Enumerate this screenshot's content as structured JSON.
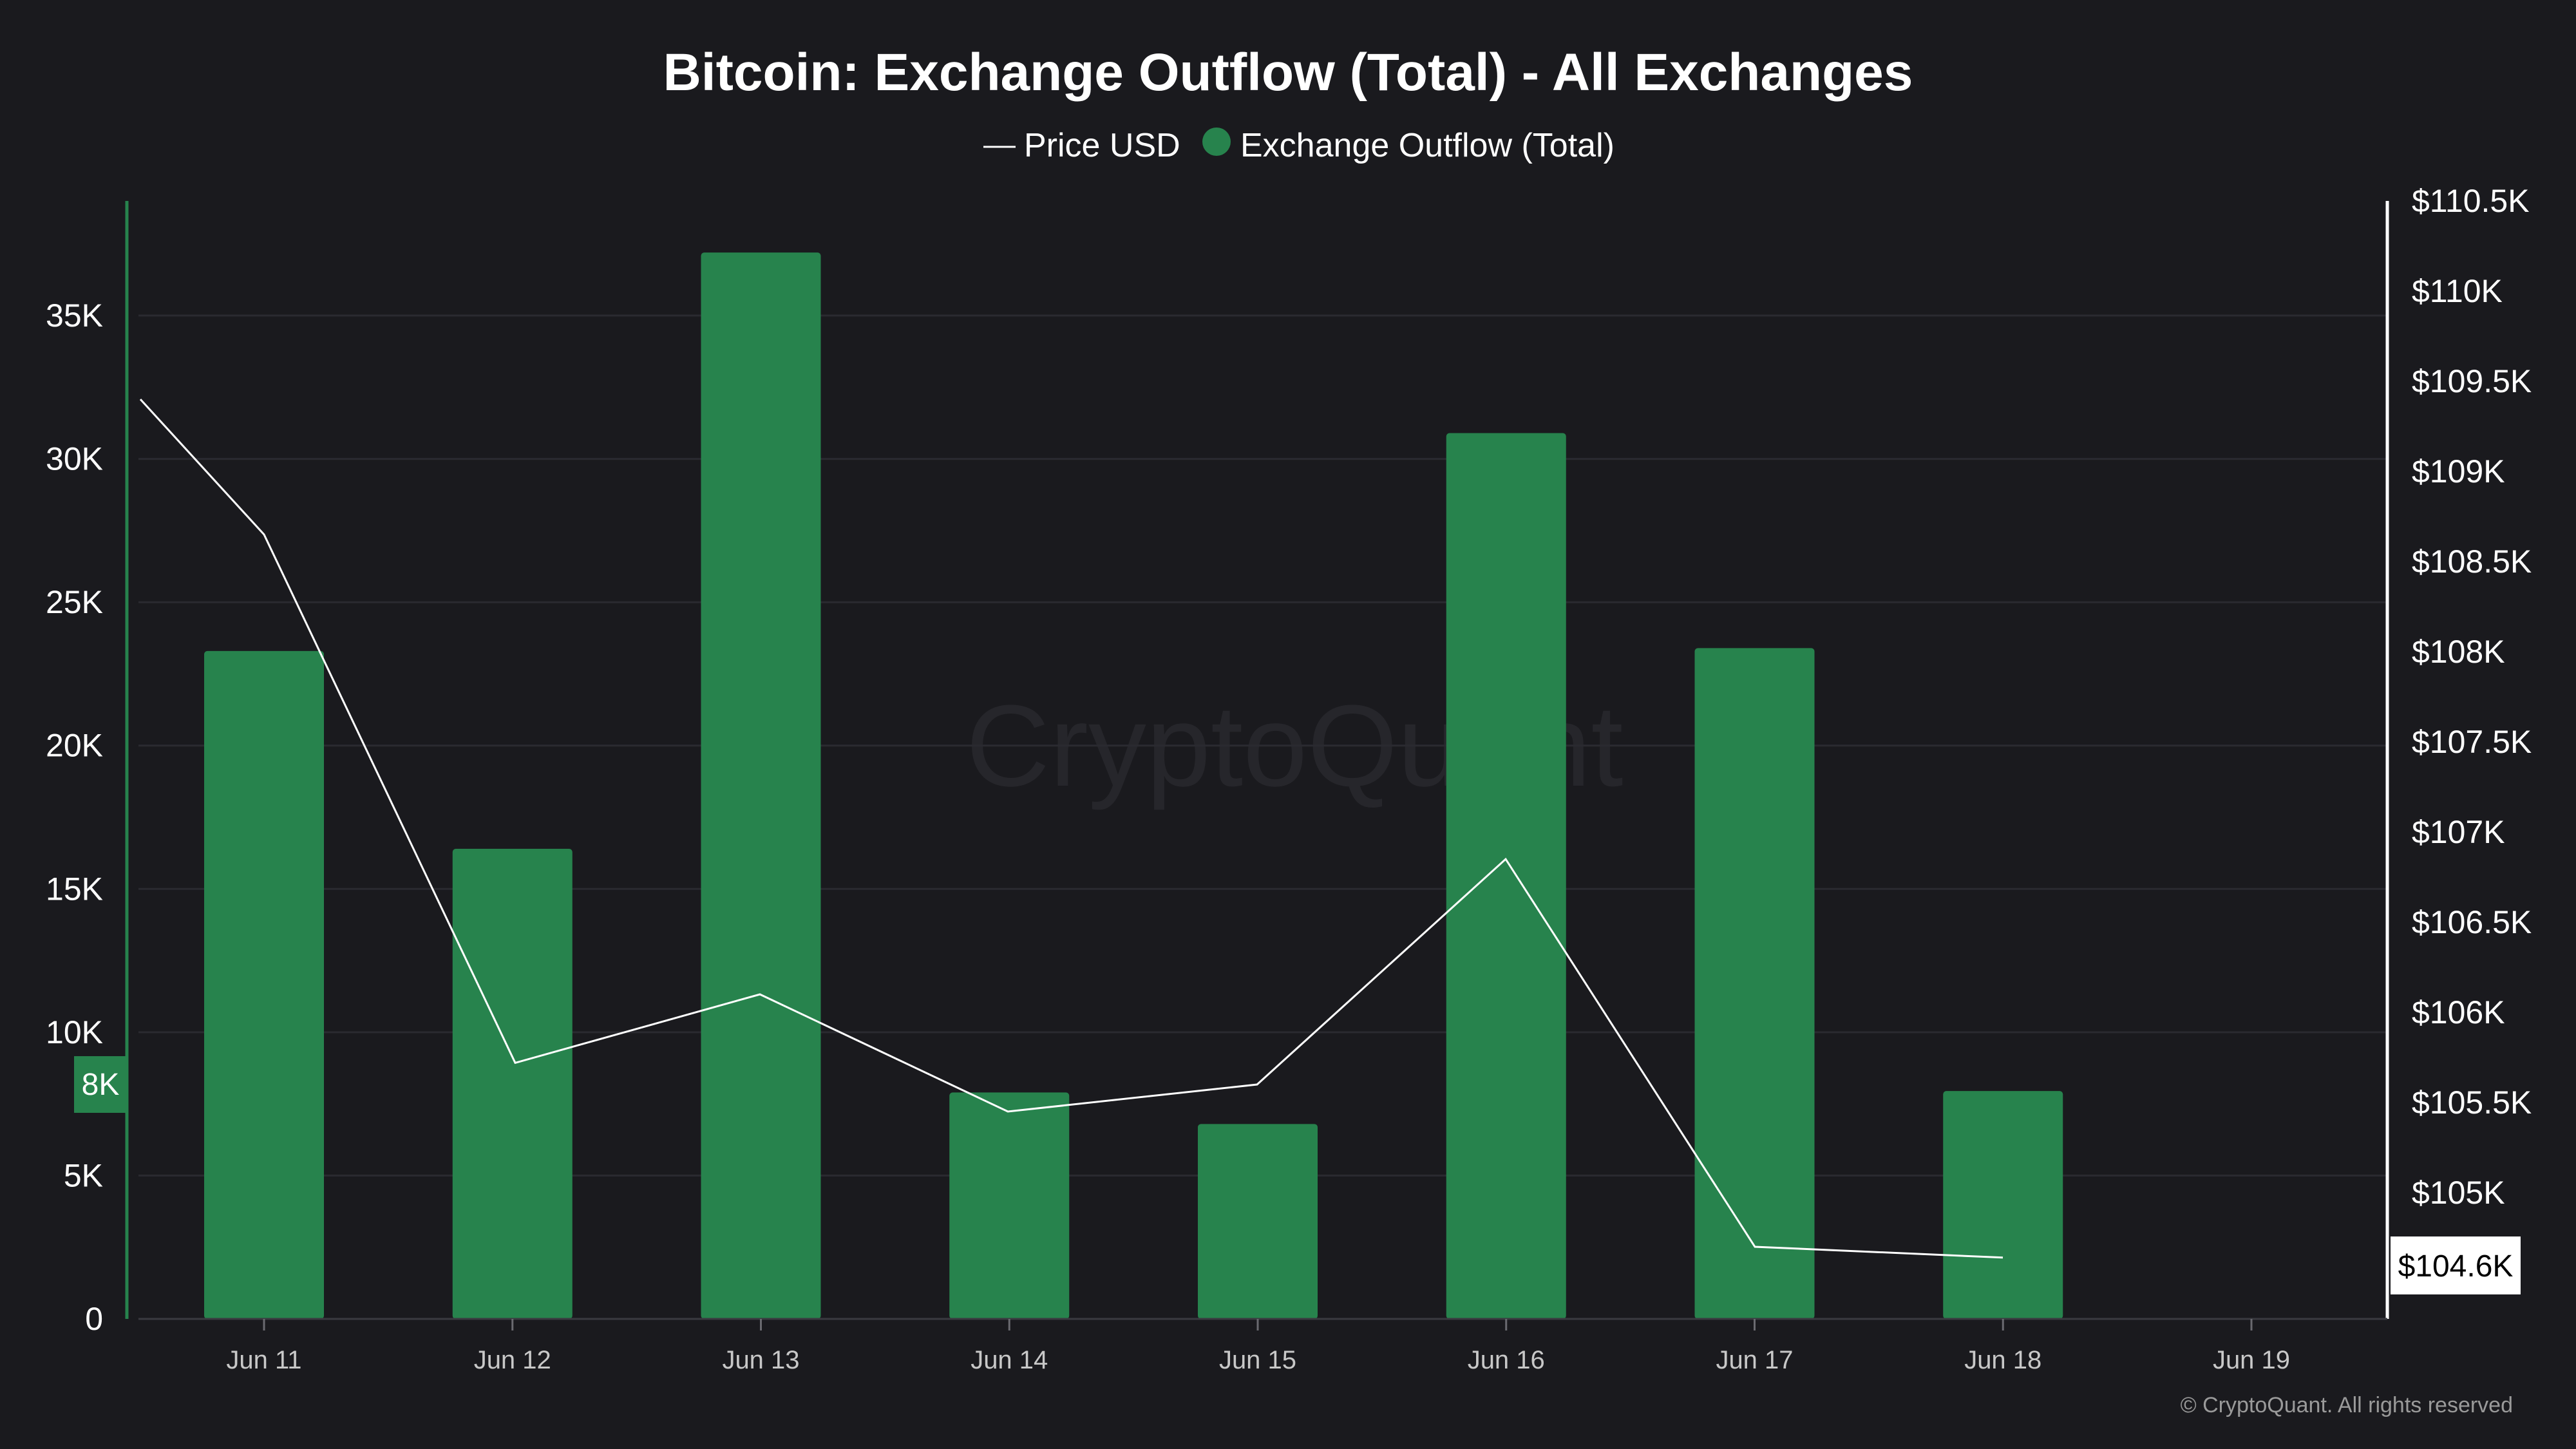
{
  "colors": {
    "background": "#1a1a1e",
    "bar": "#27834d",
    "price_line": "#ffffff",
    "grid": "#2a2a30",
    "left_axis": "#27834d",
    "right_axis": "#ffffff"
  },
  "watermark": "CryptoQuant",
  "copyright": "© CryptoQuant. All rights reserved",
  "badges": {
    "left": "8K",
    "right": "$104.6K"
  },
  "chart_data": {
    "type": "bar",
    "title": "Bitcoin: Exchange Outflow (Total) - All Exchanges",
    "legend": [
      "Price USD",
      "Exchange Outflow (Total)"
    ],
    "legend_position": "top-center",
    "categories": [
      "Jun 11",
      "Jun 12",
      "Jun 13",
      "Jun 14",
      "Jun 15",
      "Jun 16",
      "Jun 17",
      "Jun 18",
      "Jun 19"
    ],
    "grid": true,
    "series": [
      {
        "name": "Exchange Outflow (Total)",
        "type": "bar",
        "axis": "left",
        "values": [
          23300,
          16400,
          37200,
          7900,
          6800,
          30900,
          23400,
          7950,
          null
        ]
      },
      {
        "name": "Price USD",
        "type": "line",
        "axis": "right",
        "values": [
          109.4,
          108.65,
          105.72,
          106.1,
          105.45,
          105.6,
          106.85,
          104.7,
          104.64
        ]
      }
    ],
    "y_left": {
      "ticks": [
        "0",
        "5K",
        "10K",
        "15K",
        "20K",
        "25K",
        "30K",
        "35K"
      ],
      "tick_values": [
        0,
        5000,
        10000,
        15000,
        20000,
        25000,
        30000,
        35000
      ],
      "range": [
        0,
        39000
      ]
    },
    "y_right": {
      "ticks": [
        "$105K",
        "$105.5K",
        "$106K",
        "$106.5K",
        "$107K",
        "$107.5K",
        "$108K",
        "$108.5K",
        "$109K",
        "$109.5K",
        "$110K",
        "$110.5K"
      ],
      "tick_values": [
        105,
        105.5,
        106,
        106.5,
        107,
        107.5,
        108,
        108.5,
        109,
        109.5,
        110,
        110.5
      ],
      "range": [
        104.3,
        110.5
      ]
    }
  }
}
